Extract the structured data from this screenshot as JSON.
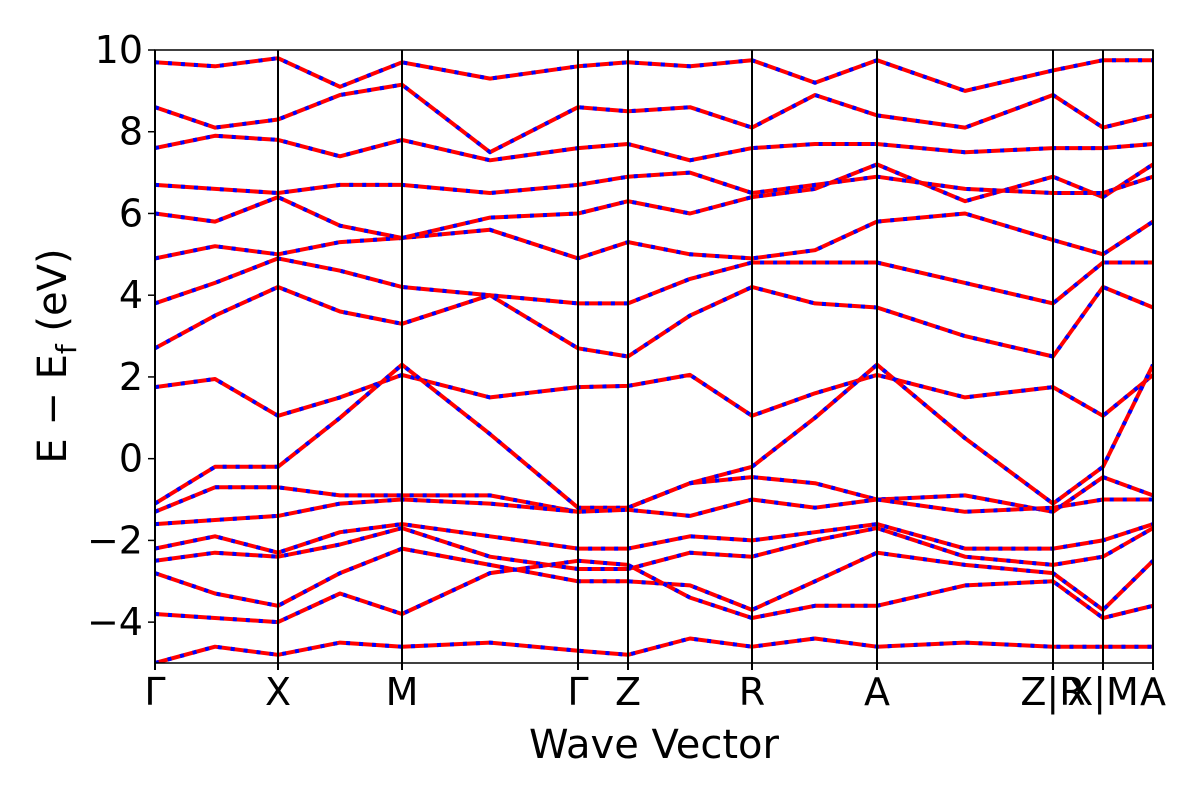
{
  "chart_data": {
    "type": "band_structure",
    "xlabel": "Wave Vector",
    "ylabel": {
      "main": "E − E",
      "sub": "f",
      "unit": " (eV)"
    },
    "line_color": "#ff0000",
    "dash_color": "#0000ff",
    "xlim": [
      0,
      9.98
    ],
    "ylim": [
      -5,
      10
    ],
    "xticks": [
      {
        "value": 0,
        "label": "Γ"
      },
      {
        "value": 1.23,
        "label": "X"
      },
      {
        "value": 2.47,
        "label": "M"
      },
      {
        "value": 4.23,
        "label": "Γ"
      },
      {
        "value": 4.73,
        "label": "Z"
      },
      {
        "value": 5.97,
        "label": "R"
      },
      {
        "value": 7.22,
        "label": "A"
      },
      {
        "value": 8.98,
        "label": "Z|R"
      },
      {
        "value": 9.48,
        "label": "X|M"
      },
      {
        "value": 9.98,
        "label": "A"
      }
    ],
    "yticks": [
      {
        "value": -4,
        "label": "−4"
      },
      {
        "value": -2,
        "label": "−2"
      },
      0,
      2,
      4,
      6,
      8,
      10
    ],
    "x": [
      0,
      0.6,
      1.23,
      1.85,
      2.47,
      3.35,
      4.23,
      4.73,
      5.35,
      5.97,
      6.6,
      7.22,
      8.1,
      8.98,
      9.48,
      9.98
    ],
    "series": [
      {
        "values": [
          1.75,
          1.95,
          1.05,
          1.5,
          2.05,
          1.5,
          1.75,
          1.78,
          2.05,
          1.05,
          1.6,
          2.05,
          1.5,
          1.75,
          1.05,
          2.05
        ]
      },
      {
        "values": [
          -1.1,
          -0.2,
          -0.2,
          1.0,
          2.3,
          0.6,
          -1.2,
          -1.2,
          -0.6,
          -0.2,
          1.0,
          2.3,
          0.5,
          -1.1,
          -0.2,
          2.3
        ]
      },
      {
        "values": [
          2.7,
          3.5,
          4.2,
          3.6,
          3.3,
          4.0,
          2.7,
          2.5,
          3.5,
          4.2,
          3.8,
          3.7,
          3.0,
          2.5,
          4.2,
          3.7
        ]
      },
      {
        "values": [
          3.8,
          4.3,
          4.9,
          4.6,
          4.2,
          4.0,
          3.8,
          3.8,
          4.4,
          4.8,
          4.8,
          4.8,
          4.3,
          3.8,
          4.8,
          4.8
        ]
      },
      {
        "values": [
          4.9,
          5.2,
          5.0,
          5.3,
          5.4,
          5.6,
          4.9,
          5.3,
          5.0,
          4.9,
          5.1,
          5.8,
          6.0,
          5.35,
          5.0,
          5.8
        ]
      },
      {
        "values": [
          6.0,
          5.8,
          6.4,
          5.7,
          5.4,
          5.9,
          6.0,
          6.3,
          6.0,
          6.4,
          6.6,
          7.2,
          6.3,
          6.9,
          6.4,
          7.2
        ]
      },
      {
        "values": [
          6.7,
          6.6,
          6.5,
          6.7,
          6.7,
          6.5,
          6.7,
          6.9,
          7.0,
          6.5,
          6.7,
          6.9,
          6.6,
          6.5,
          6.5,
          6.9
        ]
      },
      {
        "values": [
          7.6,
          7.9,
          7.8,
          7.4,
          7.8,
          7.3,
          7.6,
          7.7,
          7.3,
          7.6,
          7.7,
          7.7,
          7.5,
          7.6,
          7.6,
          7.7
        ]
      },
      {
        "values": [
          8.6,
          8.1,
          8.3,
          8.9,
          9.15,
          7.5,
          8.6,
          8.5,
          8.6,
          8.1,
          8.9,
          8.4,
          8.1,
          8.9,
          8.1,
          8.4
        ]
      },
      {
        "values": [
          9.7,
          9.6,
          9.8,
          9.1,
          9.7,
          9.3,
          9.6,
          9.7,
          9.6,
          9.75,
          9.2,
          9.75,
          9.0,
          9.5,
          9.75,
          9.75
        ]
      },
      {
        "values": [
          -1.3,
          -0.7,
          -0.7,
          -0.9,
          -0.9,
          -0.9,
          -1.3,
          -1.2,
          -0.6,
          -0.45,
          -0.6,
          -1.0,
          -0.9,
          -1.3,
          -0.45,
          -0.9
        ]
      },
      {
        "values": [
          -1.6,
          -1.5,
          -1.4,
          -1.1,
          -1.0,
          -1.1,
          -1.3,
          -1.25,
          -1.4,
          -1.0,
          -1.2,
          -1.0,
          -1.3,
          -1.2,
          -1.0,
          -1.0
        ]
      },
      {
        "values": [
          -2.2,
          -1.9,
          -2.3,
          -1.8,
          -1.6,
          -1.9,
          -2.2,
          -2.2,
          -1.9,
          -2.0,
          -1.8,
          -1.6,
          -2.2,
          -2.2,
          -2.0,
          -1.6
        ]
      },
      {
        "values": [
          -2.5,
          -2.3,
          -2.4,
          -2.1,
          -1.7,
          -2.4,
          -2.7,
          -2.7,
          -2.3,
          -2.4,
          -2.0,
          -1.7,
          -2.4,
          -2.6,
          -2.4,
          -1.7
        ]
      },
      {
        "values": [
          -2.8,
          -3.3,
          -3.6,
          -2.8,
          -2.2,
          -2.6,
          -3.0,
          -3.0,
          -3.1,
          -3.7,
          -3.0,
          -2.3,
          -2.6,
          -2.8,
          -3.7,
          -2.5
        ]
      },
      {
        "values": [
          -3.8,
          -3.9,
          -4.0,
          -3.3,
          -3.8,
          -2.8,
          -2.5,
          -2.6,
          -3.4,
          -3.9,
          -3.6,
          -3.6,
          -3.1,
          -3.0,
          -3.9,
          -3.6
        ]
      },
      {
        "values": [
          -5.0,
          -4.6,
          -4.8,
          -4.5,
          -4.6,
          -4.5,
          -4.7,
          -4.8,
          -4.4,
          -4.6,
          -4.4,
          -4.6,
          -4.5,
          -4.6,
          -4.6,
          -4.6
        ]
      }
    ]
  }
}
